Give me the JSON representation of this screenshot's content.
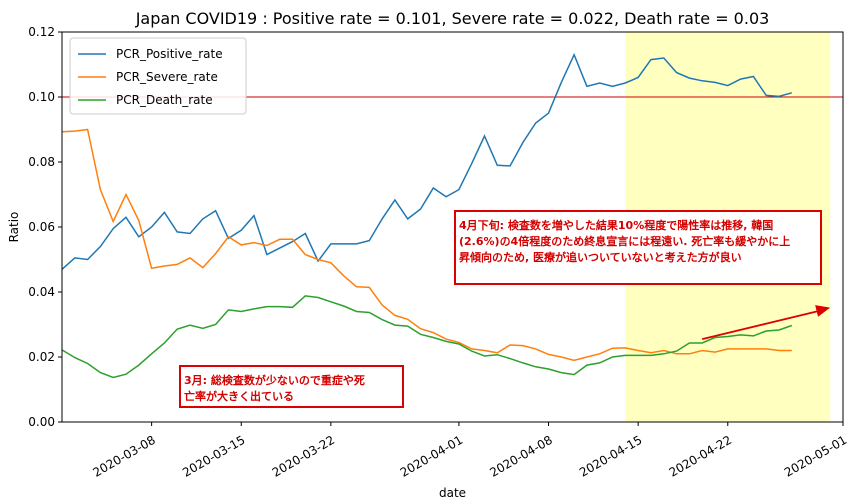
{
  "chart_data": {
    "type": "line",
    "title": "Japan COVID19 : Positive rate = 0.101, Severe rate = 0.022, Death rate = 0.03",
    "xlabel": "date",
    "ylabel": "Ratio",
    "ylim": [
      0,
      0.12
    ],
    "yticks": [
      0.0,
      0.02,
      0.04,
      0.06,
      0.08,
      0.1,
      0.12
    ],
    "ytick_labels": [
      "0.00",
      "0.02",
      "0.04",
      "0.06",
      "0.08",
      "0.10",
      "0.12"
    ],
    "x_start": "2020-03-01",
    "x_end": "2020-05-01",
    "xticks": [
      "2020-03-08",
      "2020-03-15",
      "2020-03-22",
      "2020-04-01",
      "2020-04-08",
      "2020-04-15",
      "2020-04-22",
      "2020-05-01"
    ],
    "grid": false,
    "legend_location": "upper-left",
    "reference_line": {
      "y": 0.1,
      "color": "#cc0000"
    },
    "highlight_span": {
      "from": "2020-04-14",
      "to": "2020-04-30",
      "color": "#ffffc0"
    },
    "series": [
      {
        "name": "PCR_Positive_rate",
        "color": "#1f77b4",
        "values": [
          [
            "2020-03-01",
            0.047
          ],
          [
            "2020-03-02",
            0.0505
          ],
          [
            "2020-03-03",
            0.05
          ],
          [
            "2020-03-04",
            0.054
          ],
          [
            "2020-03-05",
            0.0595
          ],
          [
            "2020-03-06",
            0.063
          ],
          [
            "2020-03-07",
            0.057
          ],
          [
            "2020-03-08",
            0.06
          ],
          [
            "2020-03-09",
            0.0645
          ],
          [
            "2020-03-10",
            0.0585
          ],
          [
            "2020-03-11",
            0.058
          ],
          [
            "2020-03-12",
            0.0625
          ],
          [
            "2020-03-13",
            0.065
          ],
          [
            "2020-03-14",
            0.0565
          ],
          [
            "2020-03-15",
            0.059
          ],
          [
            "2020-03-16",
            0.0635
          ],
          [
            "2020-03-17",
            0.0515
          ],
          [
            "2020-03-18",
            0.0535
          ],
          [
            "2020-03-19",
            0.0555
          ],
          [
            "2020-03-20",
            0.058
          ],
          [
            "2020-03-21",
            0.0495
          ],
          [
            "2020-03-22",
            0.0548
          ],
          [
            "2020-03-23",
            0.0548
          ],
          [
            "2020-03-24",
            0.0548
          ],
          [
            "2020-03-25",
            0.0558
          ],
          [
            "2020-03-26",
            0.0625
          ],
          [
            "2020-03-27",
            0.0683
          ],
          [
            "2020-03-28",
            0.0625
          ],
          [
            "2020-03-29",
            0.0655
          ],
          [
            "2020-03-30",
            0.072
          ],
          [
            "2020-03-31",
            0.0693
          ],
          [
            "2020-04-01",
            0.0715
          ],
          [
            "2020-04-02",
            0.0795
          ],
          [
            "2020-04-03",
            0.088
          ],
          [
            "2020-04-04",
            0.079
          ],
          [
            "2020-04-05",
            0.0788
          ],
          [
            "2020-04-06",
            0.086
          ],
          [
            "2020-04-07",
            0.092
          ],
          [
            "2020-04-08",
            0.095
          ],
          [
            "2020-04-09",
            0.1045
          ],
          [
            "2020-04-10",
            0.113
          ],
          [
            "2020-04-11",
            0.1033
          ],
          [
            "2020-04-12",
            0.1043
          ],
          [
            "2020-04-13",
            0.1033
          ],
          [
            "2020-04-14",
            0.1043
          ],
          [
            "2020-04-15",
            0.106
          ],
          [
            "2020-04-16",
            0.1115
          ],
          [
            "2020-04-17",
            0.112
          ],
          [
            "2020-04-18",
            0.1075
          ],
          [
            "2020-04-19",
            0.1058
          ],
          [
            "2020-04-20",
            0.105
          ],
          [
            "2020-04-21",
            0.1045
          ],
          [
            "2020-04-22",
            0.1035
          ],
          [
            "2020-04-23",
            0.1055
          ],
          [
            "2020-04-24",
            0.1063
          ],
          [
            "2020-04-25",
            0.1005
          ],
          [
            "2020-04-26",
            0.1002
          ],
          [
            "2020-04-27",
            0.1013
          ]
        ]
      },
      {
        "name": "PCR_Severe_rate",
        "color": "#ff7f0e",
        "values": [
          [
            "2020-03-01",
            0.0893
          ],
          [
            "2020-03-02",
            0.0895
          ],
          [
            "2020-03-03",
            0.09
          ],
          [
            "2020-03-04",
            0.0715
          ],
          [
            "2020-03-05",
            0.0617
          ],
          [
            "2020-03-06",
            0.07
          ],
          [
            "2020-03-07",
            0.062
          ],
          [
            "2020-03-08",
            0.0473
          ],
          [
            "2020-03-09",
            0.048
          ],
          [
            "2020-03-10",
            0.0485
          ],
          [
            "2020-03-11",
            0.0505
          ],
          [
            "2020-03-12",
            0.0475
          ],
          [
            "2020-03-13",
            0.0518
          ],
          [
            "2020-03-14",
            0.057
          ],
          [
            "2020-03-15",
            0.0545
          ],
          [
            "2020-03-16",
            0.0552
          ],
          [
            "2020-03-17",
            0.0543
          ],
          [
            "2020-03-18",
            0.0562
          ],
          [
            "2020-03-19",
            0.0562
          ],
          [
            "2020-03-20",
            0.0515
          ],
          [
            "2020-03-21",
            0.05
          ],
          [
            "2020-03-22",
            0.049
          ],
          [
            "2020-03-23",
            0.045
          ],
          [
            "2020-03-24",
            0.0416
          ],
          [
            "2020-03-25",
            0.0414
          ],
          [
            "2020-03-26",
            0.036
          ],
          [
            "2020-03-27",
            0.0328
          ],
          [
            "2020-03-28",
            0.0316
          ],
          [
            "2020-03-29",
            0.0287
          ],
          [
            "2020-03-30",
            0.0275
          ],
          [
            "2020-03-31",
            0.0255
          ],
          [
            "2020-04-01",
            0.0245
          ],
          [
            "2020-04-02",
            0.0225
          ],
          [
            "2020-04-03",
            0.022
          ],
          [
            "2020-04-04",
            0.0213
          ],
          [
            "2020-04-05",
            0.0237
          ],
          [
            "2020-04-06",
            0.0235
          ],
          [
            "2020-04-07",
            0.0225
          ],
          [
            "2020-04-08",
            0.0208
          ],
          [
            "2020-04-09",
            0.02
          ],
          [
            "2020-04-10",
            0.019
          ],
          [
            "2020-04-11",
            0.02
          ],
          [
            "2020-04-12",
            0.021
          ],
          [
            "2020-04-13",
            0.0227
          ],
          [
            "2020-04-14",
            0.0228
          ],
          [
            "2020-04-15",
            0.022
          ],
          [
            "2020-04-16",
            0.0213
          ],
          [
            "2020-04-17",
            0.022
          ],
          [
            "2020-04-18",
            0.021
          ],
          [
            "2020-04-19",
            0.021
          ],
          [
            "2020-04-20",
            0.022
          ],
          [
            "2020-04-21",
            0.0215
          ],
          [
            "2020-04-22",
            0.0225
          ],
          [
            "2020-04-23",
            0.0225
          ],
          [
            "2020-04-24",
            0.0225
          ],
          [
            "2020-04-25",
            0.0225
          ],
          [
            "2020-04-26",
            0.022
          ],
          [
            "2020-04-27",
            0.022
          ]
        ]
      },
      {
        "name": "PCR_Death_rate",
        "color": "#2ca02c",
        "values": [
          [
            "2020-03-01",
            0.0222
          ],
          [
            "2020-03-02",
            0.0198
          ],
          [
            "2020-03-03",
            0.018
          ],
          [
            "2020-03-04",
            0.0152
          ],
          [
            "2020-03-05",
            0.0137
          ],
          [
            "2020-03-06",
            0.0147
          ],
          [
            "2020-03-07",
            0.0175
          ],
          [
            "2020-03-08",
            0.021
          ],
          [
            "2020-03-09",
            0.0243
          ],
          [
            "2020-03-10",
            0.0286
          ],
          [
            "2020-03-11",
            0.0298
          ],
          [
            "2020-03-12",
            0.0288
          ],
          [
            "2020-03-13",
            0.03
          ],
          [
            "2020-03-14",
            0.0345
          ],
          [
            "2020-03-15",
            0.034
          ],
          [
            "2020-03-16",
            0.0348
          ],
          [
            "2020-03-17",
            0.0355
          ],
          [
            "2020-03-18",
            0.0355
          ],
          [
            "2020-03-19",
            0.0353
          ],
          [
            "2020-03-20",
            0.0388
          ],
          [
            "2020-03-21",
            0.0383
          ],
          [
            "2020-03-22",
            0.037
          ],
          [
            "2020-03-23",
            0.0357
          ],
          [
            "2020-03-24",
            0.034
          ],
          [
            "2020-03-25",
            0.0337
          ],
          [
            "2020-03-26",
            0.0315
          ],
          [
            "2020-03-27",
            0.0298
          ],
          [
            "2020-03-28",
            0.0295
          ],
          [
            "2020-03-29",
            0.027
          ],
          [
            "2020-03-30",
            0.026
          ],
          [
            "2020-03-31",
            0.0248
          ],
          [
            "2020-04-01",
            0.024
          ],
          [
            "2020-04-02",
            0.0218
          ],
          [
            "2020-04-03",
            0.0203
          ],
          [
            "2020-04-04",
            0.0207
          ],
          [
            "2020-04-05",
            0.0195
          ],
          [
            "2020-04-06",
            0.0182
          ],
          [
            "2020-04-07",
            0.017
          ],
          [
            "2020-04-08",
            0.0163
          ],
          [
            "2020-04-09",
            0.0152
          ],
          [
            "2020-04-10",
            0.0146
          ],
          [
            "2020-04-11",
            0.0175
          ],
          [
            "2020-04-12",
            0.0182
          ],
          [
            "2020-04-13",
            0.02
          ],
          [
            "2020-04-14",
            0.0205
          ],
          [
            "2020-04-15",
            0.0205
          ],
          [
            "2020-04-16",
            0.0205
          ],
          [
            "2020-04-17",
            0.021
          ],
          [
            "2020-04-18",
            0.0218
          ],
          [
            "2020-04-19",
            0.0243
          ],
          [
            "2020-04-20",
            0.0243
          ],
          [
            "2020-04-21",
            0.026
          ],
          [
            "2020-04-22",
            0.0263
          ],
          [
            "2020-04-23",
            0.0268
          ],
          [
            "2020-04-24",
            0.0265
          ],
          [
            "2020-04-25",
            0.028
          ],
          [
            "2020-04-26",
            0.0283
          ],
          [
            "2020-04-27",
            0.0297
          ]
        ]
      }
    ],
    "annotations": [
      {
        "lines": [
          "4月下旬: 検査数を増やした結果10%程度で陽性率は推移, 韓国",
          "(2.6%)の4倍程度のため終息宣言には程遠い. 死亡率も緩やかに上",
          "昇傾向のため, 医療が追いついていないと考えた方が良い"
        ],
        "box_color": "#dd0000",
        "text_color": "#d40000"
      },
      {
        "lines": [
          "3月: 総検査数が少ないので重症や死",
          "亡率が大きく出ている"
        ],
        "box_color": "#dd0000",
        "text_color": "#d40000"
      }
    ],
    "arrow": {
      "from": [
        "2020-04-20",
        0.0255
      ],
      "to": [
        "2020-04-30",
        0.0352
      ],
      "color": "#dd0000"
    }
  }
}
